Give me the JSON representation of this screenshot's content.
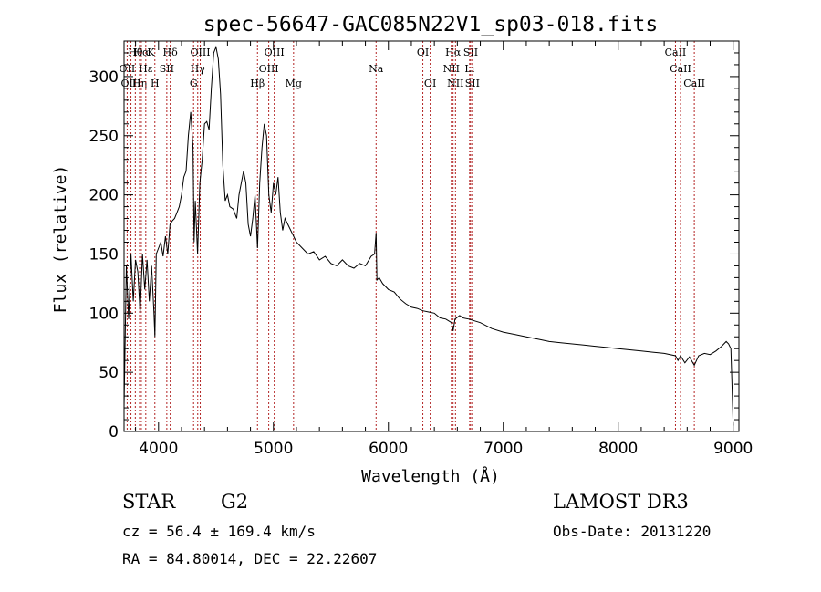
{
  "chart_data": {
    "type": "line",
    "title": "spec-56647-GAC085N22V1_sp03-018.fits",
    "xlabel": "Wavelength (Å)",
    "ylabel": "Flux (relative)",
    "xlim": [
      3700,
      9050
    ],
    "ylim": [
      0,
      330
    ],
    "xticks": [
      4000,
      5000,
      6000,
      7000,
      8000,
      9000
    ],
    "yticks": [
      0,
      50,
      100,
      150,
      200,
      250,
      300
    ],
    "series": [
      {
        "name": "flux",
        "x": [
          3700,
          3720,
          3740,
          3760,
          3780,
          3800,
          3820,
          3840,
          3860,
          3880,
          3900,
          3920,
          3940,
          3960,
          3968,
          3980,
          4000,
          4020,
          4040,
          4060,
          4080,
          4100,
          4120,
          4140,
          4160,
          4180,
          4200,
          4220,
          4240,
          4260,
          4280,
          4300,
          4310,
          4320,
          4340,
          4360,
          4380,
          4400,
          4420,
          4440,
          4460,
          4480,
          4500,
          4520,
          4540,
          4560,
          4580,
          4600,
          4620,
          4650,
          4680,
          4700,
          4720,
          4740,
          4760,
          4780,
          4800,
          4820,
          4840,
          4861,
          4880,
          4900,
          4920,
          4940,
          4960,
          4980,
          5000,
          5020,
          5040,
          5060,
          5080,
          5100,
          5150,
          5200,
          5250,
          5300,
          5350,
          5400,
          5450,
          5500,
          5550,
          5600,
          5650,
          5700,
          5750,
          5800,
          5850,
          5880,
          5893,
          5900,
          5920,
          5950,
          6000,
          6050,
          6100,
          6150,
          6200,
          6250,
          6300,
          6350,
          6400,
          6450,
          6500,
          6550,
          6563,
          6580,
          6620,
          6650,
          6700,
          6800,
          6900,
          7000,
          7100,
          7200,
          7300,
          7400,
          7500,
          7600,
          7700,
          7800,
          7900,
          8000,
          8100,
          8200,
          8300,
          8400,
          8498,
          8520,
          8542,
          8580,
          8620,
          8662,
          8700,
          8750,
          8800,
          8850,
          8900,
          8940,
          8960,
          8980,
          8990,
          9000
        ],
        "y": [
          20,
          140,
          95,
          150,
          110,
          145,
          135,
          100,
          150,
          120,
          145,
          110,
          140,
          100,
          80,
          150,
          155,
          160,
          148,
          165,
          150,
          175,
          178,
          180,
          185,
          190,
          200,
          215,
          220,
          250,
          270,
          240,
          160,
          195,
          150,
          210,
          230,
          260,
          262,
          255,
          290,
          320,
          325,
          315,
          285,
          225,
          195,
          200,
          190,
          188,
          180,
          200,
          210,
          220,
          210,
          175,
          165,
          180,
          200,
          155,
          210,
          240,
          260,
          250,
          200,
          185,
          210,
          200,
          215,
          185,
          170,
          180,
          170,
          160,
          155,
          150,
          152,
          145,
          148,
          142,
          140,
          145,
          140,
          138,
          142,
          140,
          148,
          150,
          168,
          128,
          130,
          125,
          120,
          118,
          112,
          108,
          105,
          104,
          102,
          101,
          100,
          96,
          95,
          92,
          85,
          95,
          98,
          96,
          95,
          92,
          87,
          84,
          82,
          80,
          78,
          76,
          75,
          74,
          73,
          72,
          71,
          70,
          69,
          68,
          67,
          66,
          64,
          60,
          64,
          58,
          63,
          56,
          64,
          66,
          65,
          68,
          72,
          76,
          74,
          70,
          40,
          5
        ]
      }
    ],
    "lines": [
      {
        "label": "OII",
        "wave": 3727,
        "row": 1
      },
      {
        "label": "OIII",
        "wave": 3760,
        "row": 2
      },
      {
        "label": "Hθ",
        "wave": 3798,
        "row": 0
      },
      {
        "label": "Hη",
        "wave": 3835,
        "row": 2
      },
      {
        "label": "Hα",
        "wave": 3850,
        "row": 0
      },
      {
        "label": "Hε",
        "wave": 3889,
        "row": 1
      },
      {
        "label": "K",
        "wave": 3934,
        "row": 0
      },
      {
        "label": "H",
        "wave": 3968,
        "row": 2
      },
      {
        "label": "SII",
        "wave": 4072,
        "row": 1
      },
      {
        "label": "Hδ",
        "wave": 4102,
        "row": 0
      },
      {
        "label": "G",
        "wave": 4305,
        "row": 2
      },
      {
        "label": "Hγ",
        "wave": 4341,
        "row": 1
      },
      {
        "label": "OIII",
        "wave": 4363,
        "row": 0
      },
      {
        "label": "Hβ",
        "wave": 4861,
        "row": 2
      },
      {
        "label": "OIII",
        "wave": 4959,
        "row": 1
      },
      {
        "label": "OIII",
        "wave": 5007,
        "row": 0
      },
      {
        "label": "Mg",
        "wave": 5175,
        "row": 2
      },
      {
        "label": "Na",
        "wave": 5893,
        "row": 1
      },
      {
        "label": "OI",
        "wave": 6300,
        "row": 0
      },
      {
        "label": "OI",
        "wave": 6364,
        "row": 2
      },
      {
        "label": "NII",
        "wave": 6548,
        "row": 1
      },
      {
        "label": "NII",
        "wave": 6584,
        "row": 2
      },
      {
        "label": "Hα",
        "wave": 6563,
        "row": 0
      },
      {
        "label": "SII",
        "wave": 6716,
        "row": 0
      },
      {
        "label": "Li",
        "wave": 6707,
        "row": 1
      },
      {
        "label": "SII",
        "wave": 6731,
        "row": 2
      },
      {
        "label": "CaII",
        "wave": 8498,
        "row": 0
      },
      {
        "label": "CaII",
        "wave": 8542,
        "row": 1
      },
      {
        "label": "CaII",
        "wave": 8662,
        "row": 2
      }
    ]
  },
  "info": {
    "object_class": "STAR",
    "subclass": "G2",
    "survey": "LAMOST DR3",
    "cz": "cz = 56.4 ± 169.4 km/s",
    "obs_date": "Obs-Date: 20131220",
    "coords": "RA =  84.80014, DEC =  22.22607"
  }
}
